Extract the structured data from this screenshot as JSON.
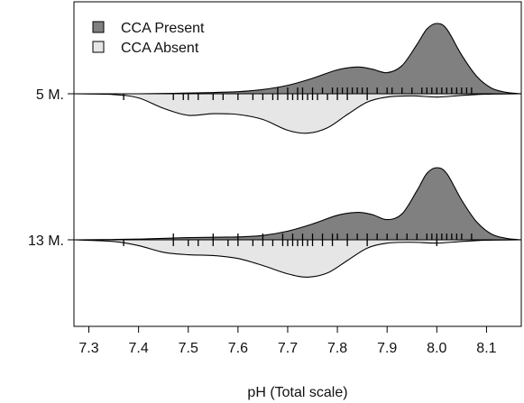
{
  "chart_data": {
    "type": "bean",
    "title": "",
    "xlabel": "pH (Total scale)",
    "ylabel": "",
    "xlim": [
      7.27,
      8.17
    ],
    "x_ticks": [
      "7.3",
      "7.4",
      "7.5",
      "7.6",
      "7.7",
      "7.8",
      "7.9",
      "8.0",
      "8.1"
    ],
    "groups": [
      "5 M.",
      "13 M."
    ],
    "legend": {
      "position": "top-left",
      "entries": [
        {
          "label": "CCA Present",
          "color": "#808080"
        },
        {
          "label": "CCA Absent",
          "color": "#e6e6e6"
        }
      ]
    },
    "series": [
      {
        "name": "CCA Present",
        "color": "#808080",
        "side": "upper",
        "density": {
          "5 M.": {
            "x": [
              7.27,
              7.4,
              7.5,
              7.6,
              7.65,
              7.7,
              7.75,
              7.8,
              7.84,
              7.87,
              7.9,
              7.93,
              7.96,
              7.98,
              8.0,
              8.02,
              8.05,
              8.08,
              8.11,
              8.14,
              8.17
            ],
            "y": [
              0,
              0,
              0.01,
              0.03,
              0.06,
              0.12,
              0.22,
              0.34,
              0.38,
              0.35,
              0.3,
              0.4,
              0.7,
              0.92,
              1.0,
              0.92,
              0.55,
              0.25,
              0.08,
              0.02,
              0
            ]
          },
          "13 M.": {
            "x": [
              7.27,
              7.4,
              7.5,
              7.6,
              7.65,
              7.7,
              7.75,
              7.8,
              7.84,
              7.87,
              7.9,
              7.93,
              7.96,
              7.98,
              8.0,
              8.02,
              8.05,
              8.08,
              8.11,
              8.14,
              8.17
            ],
            "y": [
              0,
              0.01,
              0.03,
              0.04,
              0.06,
              0.12,
              0.22,
              0.34,
              0.38,
              0.35,
              0.28,
              0.36,
              0.68,
              0.92,
              1.0,
              0.92,
              0.55,
              0.25,
              0.08,
              0.02,
              0
            ]
          }
        },
        "rugs": {
          "5 M.": [
            7.68,
            7.7,
            7.72,
            7.73,
            7.75,
            7.77,
            7.79,
            7.8,
            7.81,
            7.82,
            7.83,
            7.84,
            7.85,
            7.86,
            7.88,
            7.9,
            7.91,
            7.93,
            7.95,
            7.97,
            7.98,
            7.99,
            8.0,
            8.01,
            8.02,
            8.03,
            8.04,
            8.05,
            8.06,
            8.07
          ],
          "13 M.": [
            7.47,
            7.55,
            7.6,
            7.65,
            7.69,
            7.71,
            7.73,
            7.75,
            7.77,
            7.79,
            7.8,
            7.82,
            7.84,
            7.86,
            7.88,
            7.9,
            7.92,
            7.94,
            7.96,
            7.98,
            7.99,
            8.0,
            8.01,
            8.02,
            8.03,
            8.04,
            8.05,
            8.07
          ]
        }
      },
      {
        "name": "CCA Absent",
        "color": "#e6e6e6",
        "side": "lower",
        "density": {
          "5 M.": {
            "x": [
              7.27,
              7.35,
              7.4,
              7.45,
              7.5,
              7.55,
              7.6,
              7.65,
              7.7,
              7.74,
              7.78,
              7.82,
              7.86,
              7.9,
              7.95,
              8.0,
              8.05,
              8.1,
              8.17
            ],
            "y": [
              0,
              0.02,
              0.1,
              0.35,
              0.52,
              0.48,
              0.5,
              0.62,
              0.88,
              0.95,
              0.82,
              0.5,
              0.2,
              0.08,
              0.05,
              0.08,
              0.04,
              0.01,
              0
            ]
          },
          "13 M.": {
            "x": [
              7.27,
              7.35,
              7.4,
              7.45,
              7.5,
              7.55,
              7.6,
              7.65,
              7.7,
              7.74,
              7.78,
              7.82,
              7.86,
              7.9,
              7.95,
              8.0,
              8.05,
              8.1,
              8.17
            ],
            "y": [
              0,
              0.04,
              0.14,
              0.3,
              0.36,
              0.38,
              0.45,
              0.62,
              0.82,
              0.9,
              0.8,
              0.5,
              0.2,
              0.08,
              0.06,
              0.08,
              0.04,
              0.01,
              0
            ]
          }
        },
        "rugs": {
          "5 M.": [
            7.37,
            7.47,
            7.49,
            7.5,
            7.52,
            7.55,
            7.57,
            7.6,
            7.63,
            7.65,
            7.67,
            7.68,
            7.7,
            7.71,
            7.72,
            7.73,
            7.74,
            7.75,
            7.76,
            7.78,
            7.8,
            7.82,
            7.86
          ],
          "13 M.": [
            7.37,
            7.47,
            7.5,
            7.52,
            7.55,
            7.58,
            7.6,
            7.63,
            7.65,
            7.67,
            7.69,
            7.7,
            7.71,
            7.72,
            7.73,
            7.74,
            7.75,
            7.77,
            7.79,
            7.82,
            7.86,
            8.0
          ]
        }
      }
    ]
  }
}
